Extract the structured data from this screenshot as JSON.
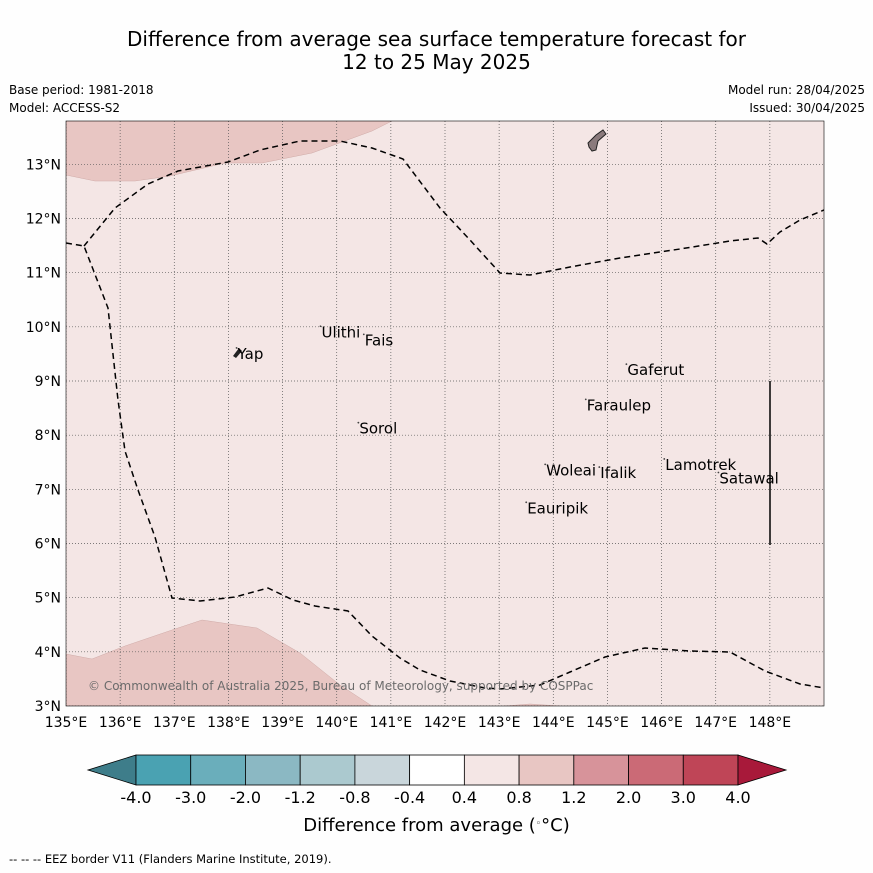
{
  "title": {
    "line1": "Difference from average sea surface temperature forecast for",
    "line2": "12 to 25 May 2025"
  },
  "meta_left": {
    "base_period": "Base period: 1981-2018",
    "model": "Model: ACCESS-S2"
  },
  "meta_right": {
    "model_run": "Model run: 28/04/2025",
    "issued": "Issued: 30/04/2025"
  },
  "map": {
    "lon_range": [
      135,
      149
    ],
    "lat_range": [
      3,
      13.8
    ],
    "lat_ticks": [
      "3°N",
      "4°N",
      "5°N",
      "6°N",
      "7°N",
      "8°N",
      "9°N",
      "10°N",
      "11°N",
      "12°N",
      "13°N"
    ],
    "lon_ticks": [
      "135°E",
      "136°E",
      "137°E",
      "138°E",
      "139°E",
      "140°E",
      "141°E",
      "142°E",
      "143°E",
      "144°E",
      "145°E",
      "146°E",
      "147°E",
      "148°E"
    ],
    "background_anomaly_color": "#f4e6e5",
    "warm_patch_color": "#e8c6c3",
    "islands": [
      {
        "name": "Yap",
        "lon": 138.15,
        "lat": 9.5
      },
      {
        "name": "Ulithi",
        "lon": 139.7,
        "lat": 9.9
      },
      {
        "name": "Fais",
        "lon": 140.5,
        "lat": 9.75
      },
      {
        "name": "Sorol",
        "lon": 140.4,
        "lat": 8.12
      },
      {
        "name": "Gaferut",
        "lon": 145.35,
        "lat": 9.2
      },
      {
        "name": "Faraulep",
        "lon": 144.6,
        "lat": 8.55
      },
      {
        "name": "Woleai",
        "lon": 143.85,
        "lat": 7.35
      },
      {
        "name": "Ifalik",
        "lon": 144.85,
        "lat": 7.3
      },
      {
        "name": "Eauripik",
        "lon": 143.5,
        "lat": 6.65
      },
      {
        "name": "Lamotrek",
        "lon": 146.05,
        "lat": 7.45
      },
      {
        "name": "Satawal",
        "lon": 147.05,
        "lat": 7.2
      }
    ],
    "copyright": "© Commonwealth of Australia 2025, Bureau of Meteorology, supported by COSPPac"
  },
  "colorbar": {
    "colors": [
      "#3e7d8a",
      "#4aa2b2",
      "#6aaebb",
      "#8bb8c3",
      "#abc9cf",
      "#c9d6db",
      "#ffffff",
      "#f4e6e5",
      "#e8c6c3",
      "#d7939a",
      "#cb6a76",
      "#bf4557",
      "#a8193a"
    ],
    "labels": [
      "-4.0",
      "-3.0",
      "-2.0",
      "-1.2",
      "-0.8",
      "-0.4",
      "0.4",
      "0.8",
      "1.2",
      "2.0",
      "3.0",
      "4.0"
    ],
    "title": "Difference from average (",
    "title_unit": "°C)"
  },
  "footer": {
    "legend_line": "-- -- -- EEZ border V11 (Flanders Marine Institute, 2019)."
  }
}
